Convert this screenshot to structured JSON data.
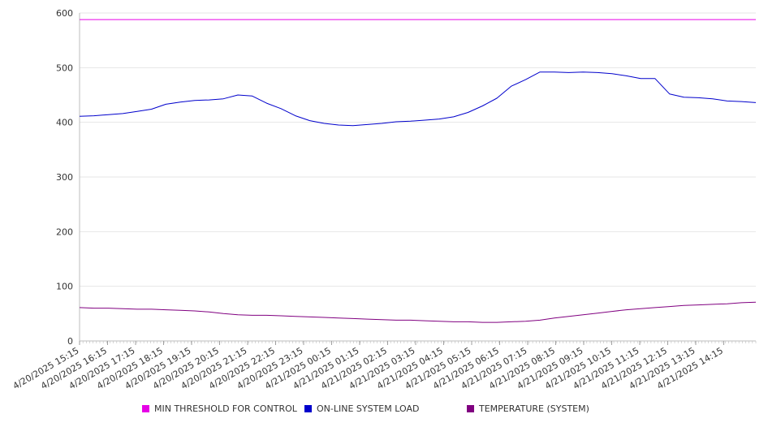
{
  "chart_data": {
    "type": "line",
    "title": "",
    "xlabel": "",
    "ylabel": "",
    "ylim": [
      0,
      600
    ],
    "yticks": [
      0,
      100,
      200,
      300,
      400,
      500,
      600
    ],
    "grid": true,
    "legend_position": "bottom",
    "x_tick_labels": [
      "4/20/2025 15:15",
      "4/20/2025 16:15",
      "4/20/2025 17:15",
      "4/20/2025 18:15",
      "4/20/2025 19:15",
      "4/20/2025 20:15",
      "4/20/2025 21:15",
      "4/20/2025 22:15",
      "4/20/2025 23:15",
      "4/21/2025 00:15",
      "4/21/2025 01:15",
      "4/21/2025 02:15",
      "4/21/2025 03:15",
      "4/21/2025 04:15",
      "4/21/2025 05:15",
      "4/21/2025 06:15",
      "4/21/2025 07:15",
      "4/21/2025 08:15",
      "4/21/2025 09:15",
      "4/21/2025 10:15",
      "4/21/2025 11:15",
      "4/21/2025 12:15",
      "4/21/2025 13:15",
      "4/21/2025 14:15"
    ],
    "x": [
      "4/20/2025 15:15",
      "4/20/2025 15:45",
      "4/20/2025 16:15",
      "4/20/2025 16:45",
      "4/20/2025 17:15",
      "4/20/2025 17:45",
      "4/20/2025 18:15",
      "4/20/2025 18:45",
      "4/20/2025 19:15",
      "4/20/2025 19:45",
      "4/20/2025 20:15",
      "4/20/2025 20:45",
      "4/20/2025 21:15",
      "4/20/2025 21:45",
      "4/20/2025 22:15",
      "4/20/2025 22:45",
      "4/20/2025 23:15",
      "4/20/2025 23:45",
      "4/21/2025 00:15",
      "4/21/2025 00:45",
      "4/21/2025 01:15",
      "4/21/2025 01:45",
      "4/21/2025 02:15",
      "4/21/2025 02:45",
      "4/21/2025 03:15",
      "4/21/2025 03:45",
      "4/21/2025 04:15",
      "4/21/2025 04:45",
      "4/21/2025 05:15",
      "4/21/2025 05:45",
      "4/21/2025 06:15",
      "4/21/2025 06:45",
      "4/21/2025 07:15",
      "4/21/2025 07:45",
      "4/21/2025 08:15",
      "4/21/2025 08:45",
      "4/21/2025 09:15",
      "4/21/2025 09:45",
      "4/21/2025 10:15",
      "4/21/2025 10:45",
      "4/21/2025 11:15",
      "4/21/2025 11:45",
      "4/21/2025 12:15",
      "4/21/2025 12:45",
      "4/21/2025 13:15",
      "4/21/2025 13:45",
      "4/21/2025 14:15",
      "4/21/2025 14:45"
    ],
    "series": [
      {
        "name": "MIN THRESHOLD FOR CONTROL",
        "color": "#e600e6",
        "values": [
          588,
          588,
          588,
          588,
          588,
          588,
          588,
          588,
          588,
          588,
          588,
          588,
          588,
          588,
          588,
          588,
          588,
          588,
          588,
          588,
          588,
          588,
          588,
          588,
          588,
          588,
          588,
          588,
          588,
          588,
          588,
          588,
          588,
          588,
          588,
          588,
          588,
          588,
          588,
          588,
          588,
          588,
          588,
          588,
          588,
          588,
          588,
          588
        ]
      },
      {
        "name": "ON-LINE SYSTEM LOAD",
        "color": "#0000cc",
        "values": [
          411,
          412,
          414,
          416,
          420,
          424,
          433,
          437,
          440,
          441,
          443,
          450,
          448,
          435,
          425,
          412,
          403,
          398,
          395,
          394,
          396,
          398,
          401,
          402,
          404,
          406,
          410,
          418,
          430,
          444,
          466,
          478,
          492,
          492,
          491,
          492,
          491,
          489,
          485,
          480,
          480,
          452,
          446,
          445,
          443,
          439,
          438,
          436
        ]
      },
      {
        "name": "TEMPERATURE (SYSTEM)",
        "color": "#800080",
        "values": [
          61,
          60,
          60,
          59,
          58,
          58,
          57,
          56,
          55,
          53,
          50,
          48,
          47,
          47,
          46,
          45,
          44,
          43,
          42,
          41,
          40,
          39,
          38,
          38,
          37,
          36,
          35,
          35,
          34,
          34,
          35,
          36,
          38,
          42,
          45,
          48,
          51,
          54,
          57,
          59,
          61,
          63,
          65,
          66,
          67,
          68,
          70,
          71
        ]
      }
    ]
  }
}
